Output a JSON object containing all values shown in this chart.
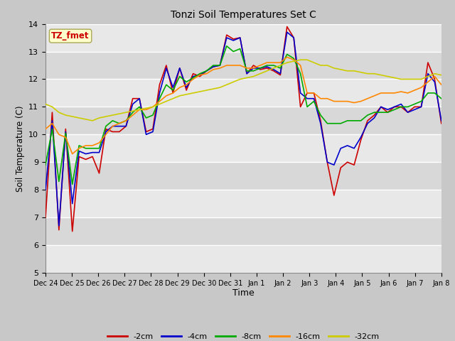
{
  "title": "Tonzi Soil Temperatures Set C",
  "xlabel": "Time",
  "ylabel": "Soil Temperature (C)",
  "ylim": [
    5.0,
    14.0
  ],
  "yticks": [
    5.0,
    6.0,
    7.0,
    8.0,
    9.0,
    10.0,
    11.0,
    12.0,
    13.0,
    14.0
  ],
  "annotation_text": "TZ_fmet",
  "annotation_color": "#cc0000",
  "annotation_bg": "#ffffcc",
  "annotation_border": "#aaa855",
  "series_colors": [
    "#cc0000",
    "#0000cc",
    "#00aa00",
    "#ff8800",
    "#cccc00"
  ],
  "series_labels": [
    "-2cm",
    "-4cm",
    "-8cm",
    "-16cm",
    "-32cm"
  ],
  "xtick_labels": [
    "Dec 24",
    "Dec 25",
    "Dec 26",
    "Dec 27",
    "Dec 28",
    "Dec 29",
    "Dec 30",
    "Dec 31",
    "Jan 1",
    "Jan 2",
    "Jan 3",
    "Jan 4",
    "Jan 5",
    "Jan 6",
    "Jan 7",
    "Jan 8"
  ],
  "cm2": [
    7.0,
    10.8,
    6.55,
    10.2,
    6.5,
    9.2,
    9.1,
    9.2,
    8.6,
    10.2,
    10.1,
    10.1,
    10.3,
    11.3,
    11.3,
    10.1,
    10.2,
    11.8,
    12.5,
    11.5,
    12.4,
    11.6,
    12.2,
    12.1,
    12.3,
    12.45,
    12.5,
    13.6,
    13.45,
    13.5,
    12.2,
    12.5,
    12.35,
    12.4,
    12.3,
    12.15,
    13.9,
    13.5,
    11.0,
    11.5,
    11.5,
    10.5,
    9.0,
    7.8,
    8.8,
    9.0,
    8.9,
    9.8,
    10.5,
    10.7,
    11.0,
    10.8,
    11.0,
    11.0,
    10.8,
    11.0,
    11.0,
    12.6,
    12.0,
    10.4
  ],
  "cm4": [
    8.0,
    10.5,
    6.7,
    10.1,
    7.5,
    9.4,
    9.3,
    9.35,
    9.35,
    10.1,
    10.3,
    10.3,
    10.3,
    11.1,
    11.3,
    10.0,
    10.1,
    11.5,
    12.4,
    11.7,
    12.4,
    11.7,
    12.1,
    12.15,
    12.3,
    12.45,
    12.5,
    13.5,
    13.4,
    13.5,
    12.2,
    12.4,
    12.4,
    12.45,
    12.35,
    12.2,
    13.7,
    13.5,
    11.5,
    11.3,
    11.3,
    10.4,
    9.0,
    8.9,
    9.5,
    9.6,
    9.5,
    9.9,
    10.4,
    10.6,
    11.0,
    10.9,
    11.0,
    11.1,
    10.8,
    10.9,
    11.0,
    12.2,
    11.9,
    10.5
  ],
  "cm8": [
    8.9,
    10.2,
    8.3,
    10.05,
    8.2,
    9.6,
    9.5,
    9.5,
    9.5,
    10.3,
    10.5,
    10.4,
    10.5,
    10.8,
    11.0,
    10.6,
    10.7,
    11.3,
    11.8,
    11.6,
    12.1,
    11.9,
    12.05,
    12.2,
    12.3,
    12.5,
    12.5,
    13.2,
    13.0,
    13.1,
    12.3,
    12.3,
    12.4,
    12.5,
    12.5,
    12.4,
    12.9,
    12.75,
    12.2,
    11.0,
    11.2,
    10.7,
    10.4,
    10.4,
    10.4,
    10.5,
    10.5,
    10.5,
    10.7,
    10.8,
    10.8,
    10.8,
    10.9,
    11.0,
    11.0,
    11.1,
    11.2,
    11.5,
    11.5,
    11.3
  ],
  "cm16": [
    10.2,
    10.4,
    10.0,
    9.9,
    9.3,
    9.5,
    9.6,
    9.6,
    9.7,
    10.0,
    10.3,
    10.4,
    10.5,
    10.7,
    10.9,
    10.9,
    11.0,
    11.2,
    11.4,
    11.5,
    11.7,
    11.8,
    12.0,
    12.15,
    12.2,
    12.35,
    12.4,
    12.5,
    12.5,
    12.5,
    12.4,
    12.4,
    12.5,
    12.6,
    12.6,
    12.6,
    12.8,
    12.7,
    12.5,
    11.5,
    11.5,
    11.3,
    11.3,
    11.2,
    11.2,
    11.2,
    11.15,
    11.2,
    11.3,
    11.4,
    11.5,
    11.5,
    11.5,
    11.55,
    11.5,
    11.6,
    11.7,
    11.9,
    12.1,
    11.8
  ],
  "cm32": [
    11.1,
    11.0,
    10.8,
    10.7,
    10.65,
    10.6,
    10.55,
    10.5,
    10.6,
    10.65,
    10.7,
    10.75,
    10.8,
    10.85,
    10.9,
    10.95,
    11.0,
    11.1,
    11.2,
    11.3,
    11.4,
    11.45,
    11.5,
    11.55,
    11.6,
    11.65,
    11.7,
    11.8,
    11.9,
    12.0,
    12.05,
    12.1,
    12.2,
    12.3,
    12.4,
    12.5,
    12.6,
    12.65,
    12.7,
    12.7,
    12.6,
    12.5,
    12.5,
    12.4,
    12.35,
    12.3,
    12.3,
    12.25,
    12.2,
    12.2,
    12.15,
    12.1,
    12.05,
    12.0,
    12.0,
    12.0,
    12.0,
    12.1,
    12.2,
    12.15
  ]
}
